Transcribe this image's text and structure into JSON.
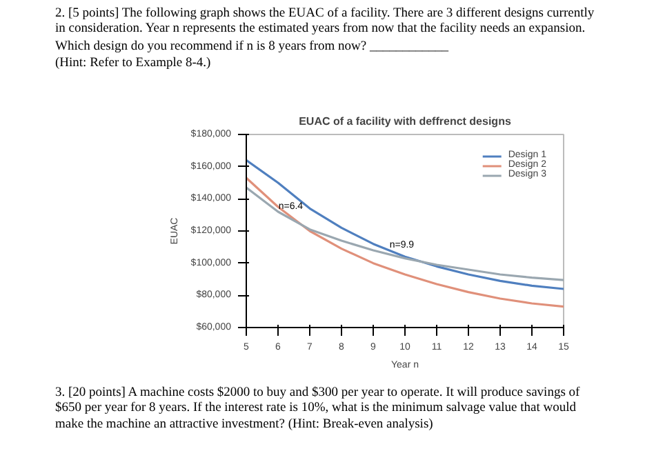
{
  "chart_data": {
    "type": "line",
    "title": "EUAC of a facility with deffrenct designs",
    "xlabel": "Year n",
    "ylabel": "EUAC",
    "x": [
      5,
      6,
      7,
      8,
      9,
      10,
      11,
      12,
      13,
      14,
      15
    ],
    "series": [
      {
        "name": "Design 1",
        "color": "#4f7fbf",
        "values": [
          164000,
          150000,
          134000,
          122000,
          112000,
          104000,
          98000,
          93000,
          89000,
          86000,
          84000
        ]
      },
      {
        "name": "Design 2",
        "color": "#e0907a",
        "values": [
          153000,
          135000,
          120000,
          109000,
          100000,
          93000,
          87000,
          82000,
          78000,
          75000,
          73000
        ]
      },
      {
        "name": "Design 3",
        "color": "#9aa7b0",
        "values": [
          147000,
          132000,
          121000,
          114000,
          108000,
          103000,
          99000,
          96000,
          93000,
          91000,
          89500
        ]
      }
    ],
    "xlim": [
      5,
      15
    ],
    "xticks": [
      5,
      6,
      7,
      8,
      9,
      10,
      11,
      12,
      13,
      14,
      15
    ],
    "ylim": [
      60000,
      180000
    ],
    "yticks": [
      {
        "value": 60000,
        "label": "$60,000"
      },
      {
        "value": 80000,
        "label": "$80,000"
      },
      {
        "value": 100000,
        "label": "$100,000"
      },
      {
        "value": 120000,
        "label": "$120,000"
      },
      {
        "value": 140000,
        "label": "$140,000"
      },
      {
        "value": 160000,
        "label": "$160,000"
      },
      {
        "value": 180000,
        "label": "$180,000"
      }
    ],
    "grid": false,
    "legend": "top right",
    "annotations": [
      "2. [5 points] The following graph shows the EUAC of a facility. There are 3 different designs currently in consideration. Year n represents the estimated years from now that the facility needs an expansion.",
      "Which design do you recommend if n is 8 years from now? ____________",
      "(Hint: Refer to Example 8-4.)",
      {
        "text": "n=6.4",
        "x": 6.4,
        "y": 127000
      },
      {
        "text": "n=9.9",
        "x": 9.9,
        "y": 103000
      },
      "3. [20 points] A machine costs $2000 to buy and $300 per year to operate. It will produce savings of $650 per year for 8 years. If the interest rate is 10%, what is the minimum salvage value that would make the machine an attractive investment? (Hint: Break-even analysis)"
    ]
  }
}
